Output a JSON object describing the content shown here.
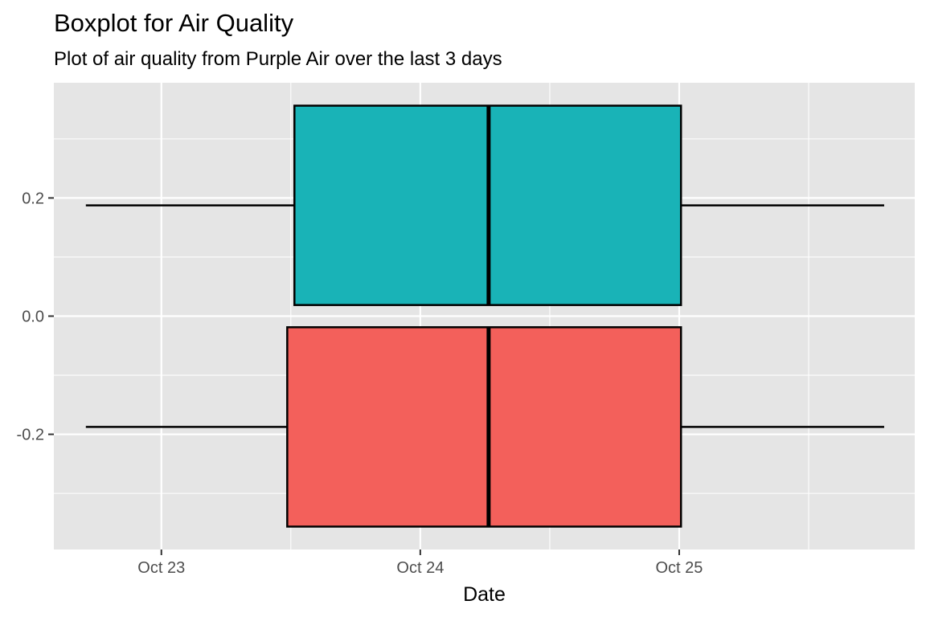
{
  "chart_data": {
    "type": "boxplot",
    "title": "Boxplot for Air Quality",
    "subtitle": "Plot of air quality from Purple Air over the last 3 days",
    "xlabel": "Date",
    "ylabel": "",
    "x_ticks": [
      {
        "date": "2023-10-23",
        "label": "Oct 23"
      },
      {
        "date": "2023-10-24",
        "label": "Oct 24"
      },
      {
        "date": "2023-10-25",
        "label": "Oct 25"
      }
    ],
    "y_ticks": [
      {
        "value": 0.2,
        "label": "0.2"
      },
      {
        "value": 0.0,
        "label": "0.0"
      },
      {
        "value": -0.2,
        "label": "-0.2"
      }
    ],
    "xlim": [
      "2023-10-22 14:02",
      "2023-10-25 21:50"
    ],
    "ylim": [
      -0.395,
      0.395
    ],
    "orientation": "horizontal",
    "grid": true,
    "legend": "none",
    "boxes": [
      {
        "y_center": 0.1875,
        "y_low": 0.0188,
        "y_high": 0.3562,
        "min": "2023-10-22 17:00",
        "q1": "2023-10-23 12:20",
        "median": "2023-10-24 06:20",
        "q3": "2023-10-25 00:10",
        "max": "2023-10-25 19:00",
        "color": "#19b3b7"
      },
      {
        "y_center": -0.1875,
        "y_low": -0.3562,
        "y_high": -0.0188,
        "min": "2023-10-22 17:00",
        "q1": "2023-10-23 11:40",
        "median": "2023-10-24 06:20",
        "q3": "2023-10-25 00:10",
        "max": "2023-10-25 19:00",
        "color": "#f3605b"
      }
    ],
    "colors": {
      "panel": "#e5e5e5",
      "grid": "#ffffff",
      "outline": "#000000"
    }
  }
}
